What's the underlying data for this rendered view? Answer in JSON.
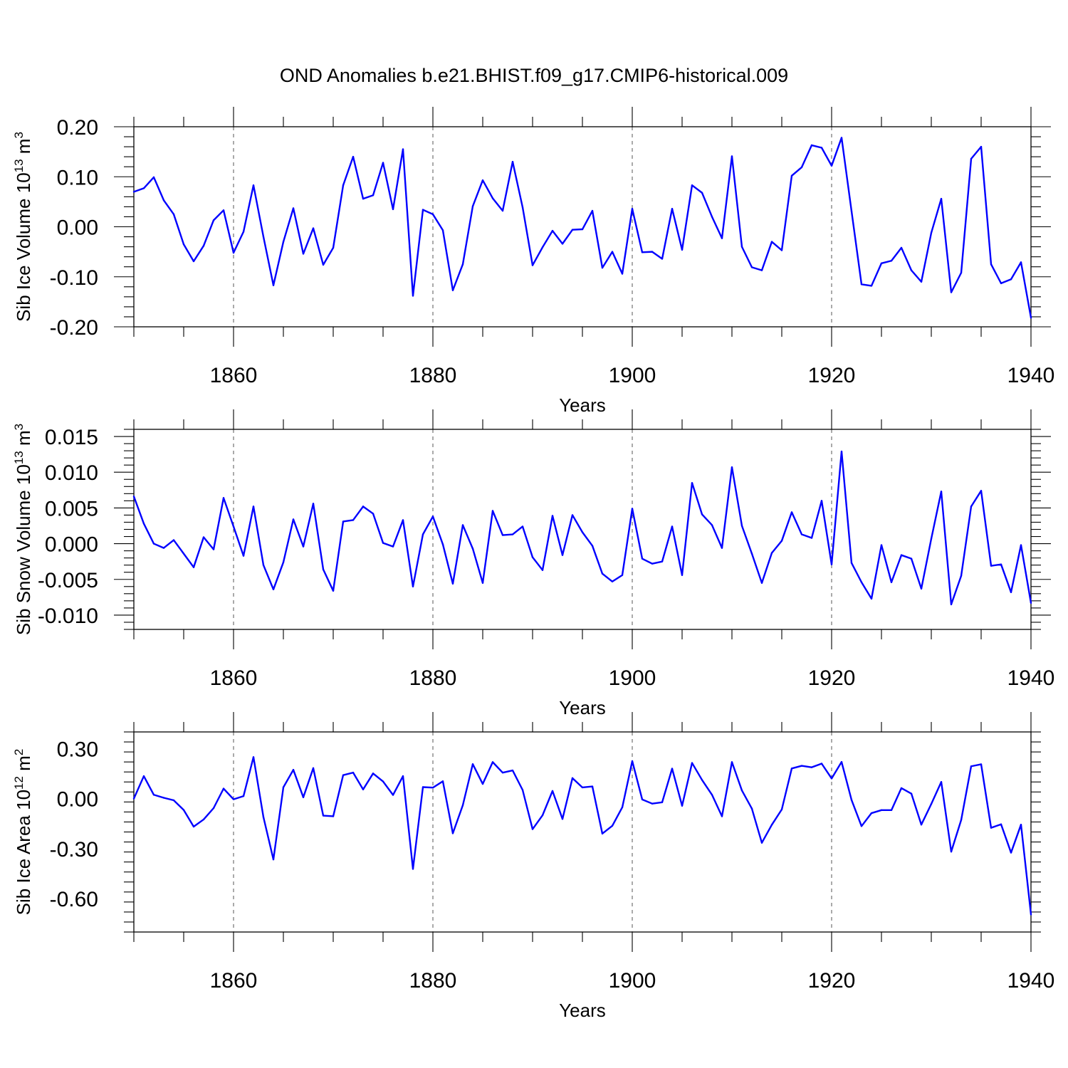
{
  "title": "OND Anomalies b.e21.BHIST.f09_g17.CMIP6-historical.009",
  "line_color": "#0000ff",
  "chart_data": [
    {
      "type": "line",
      "name": "sib-ice-volume",
      "ylabel": "Sib Ice Volume 10",
      "ylabel_exp": "13",
      "ylabel_unit": " m",
      "ylabel_unit_exp": "3",
      "xlabel": "Years",
      "xlim": [
        1850,
        1940
      ],
      "ylim": [
        -0.2,
        0.2
      ],
      "yticks": [
        -0.2,
        -0.1,
        0.0,
        0.1,
        0.2
      ],
      "ytick_labels": [
        "-0.20",
        "-0.10",
        "0.00",
        "0.10",
        "0.20"
      ],
      "xticks": [
        1860,
        1880,
        1900,
        1920,
        1940
      ],
      "xtick_labels": [
        "1860",
        "1880",
        "1900",
        "1920",
        "1940"
      ],
      "x_start": 1850,
      "values": [
        0.07,
        0.077,
        0.099,
        0.053,
        0.025,
        -0.035,
        -0.069,
        -0.038,
        0.013,
        0.033,
        -0.052,
        -0.01,
        0.083,
        -0.02,
        -0.117,
        -0.03,
        0.037,
        -0.054,
        -0.003,
        -0.076,
        -0.042,
        0.083,
        0.14,
        0.056,
        0.063,
        0.128,
        0.035,
        0.155,
        -0.138,
        0.034,
        0.025,
        -0.007,
        -0.127,
        -0.075,
        0.041,
        0.093,
        0.057,
        0.032,
        0.13,
        0.039,
        -0.077,
        -0.041,
        -0.008,
        -0.034,
        -0.006,
        -0.005,
        0.032,
        -0.082,
        -0.05,
        -0.094,
        0.036,
        -0.051,
        -0.05,
        -0.064,
        0.036,
        -0.046,
        0.083,
        0.068,
        0.02,
        -0.023,
        0.141,
        -0.04,
        -0.081,
        -0.087,
        -0.03,
        -0.047,
        0.102,
        0.119,
        0.163,
        0.158,
        0.122,
        0.178,
        0.031,
        -0.115,
        -0.118,
        -0.073,
        -0.068,
        -0.042,
        -0.087,
        -0.11,
        -0.012,
        0.056,
        -0.131,
        -0.092,
        0.136,
        0.16,
        -0.075,
        -0.113,
        -0.105,
        -0.071,
        -0.182
      ]
    },
    {
      "type": "line",
      "name": "sib-snow-volume",
      "ylabel": "Sib Snow Volume 10",
      "ylabel_exp": "13",
      "ylabel_unit": " m",
      "ylabel_unit_exp": "3",
      "xlabel": "Years",
      "xlim": [
        1850,
        1940
      ],
      "ylim": [
        -0.012,
        0.016
      ],
      "yticks": [
        -0.01,
        -0.005,
        0.0,
        0.005,
        0.01,
        0.015
      ],
      "ytick_labels": [
        "-0.010",
        "-0.005",
        "0.000",
        "0.005",
        "0.010",
        "0.015"
      ],
      "xticks": [
        1860,
        1880,
        1900,
        1920,
        1940
      ],
      "xtick_labels": [
        "1860",
        "1880",
        "1900",
        "1920",
        "1940"
      ],
      "x_start": 1850,
      "values": [
        0.0066,
        0.0028,
        0.0,
        -0.0006,
        0.0005,
        -0.0014,
        -0.0033,
        0.0009,
        -0.0008,
        0.0064,
        0.0024,
        -0.0017,
        0.0052,
        -0.003,
        -0.0064,
        -0.0026,
        0.0034,
        -0.0004,
        0.0056,
        -0.0036,
        -0.0066,
        0.0031,
        0.0033,
        0.0052,
        0.0042,
        0.0001,
        -0.0004,
        0.0033,
        -0.006,
        0.0013,
        0.0038,
        -0.0001,
        -0.0056,
        0.0026,
        -0.0007,
        -0.0055,
        0.0046,
        0.0012,
        0.0013,
        0.0024,
        -0.0019,
        -0.0037,
        0.0039,
        -0.0016,
        0.004,
        0.0016,
        -0.0003,
        -0.0042,
        -0.0053,
        -0.0044,
        0.0049,
        -0.0021,
        -0.0028,
        -0.0025,
        0.0024,
        -0.0044,
        0.0085,
        0.0041,
        0.0026,
        -0.0006,
        0.0107,
        0.0025,
        -0.0014,
        -0.0055,
        -0.0013,
        0.0004,
        0.0044,
        0.0013,
        0.0008,
        0.006,
        -0.0029,
        0.0129,
        -0.0027,
        -0.0054,
        -0.0077,
        -0.0002,
        -0.0054,
        -0.0016,
        -0.0021,
        -0.0063,
        0.0007,
        0.0073,
        -0.0085,
        -0.0045,
        0.0052,
        0.0074,
        -0.0031,
        -0.0029,
        -0.0068,
        -0.0002,
        -0.0083
      ]
    },
    {
      "type": "line",
      "name": "sib-ice-area",
      "ylabel": "Sib Ice Area 10",
      "ylabel_exp": "12",
      "ylabel_unit": " m",
      "ylabel_unit_exp": "2",
      "xlabel": "Years",
      "xlim": [
        1850,
        1940
      ],
      "ylim": [
        -0.8,
        0.4
      ],
      "yticks": [
        -0.6,
        -0.3,
        0.0,
        0.3
      ],
      "ytick_labels": [
        "-0.60",
        "-0.30",
        "0.00",
        "0.30"
      ],
      "xticks": [
        1860,
        1880,
        1900,
        1920,
        1940
      ],
      "xtick_labels": [
        "1860",
        "1880",
        "1900",
        "1920",
        "1940"
      ],
      "x_start": 1850,
      "values": [
        0.0,
        0.135,
        0.023,
        0.005,
        -0.01,
        -0.068,
        -0.168,
        -0.125,
        -0.057,
        0.06,
        -0.004,
        0.015,
        0.249,
        -0.111,
        -0.365,
        0.068,
        0.173,
        0.008,
        0.183,
        -0.102,
        -0.106,
        0.141,
        0.156,
        0.055,
        0.151,
        0.103,
        0.022,
        0.135,
        -0.422,
        0.069,
        0.066,
        0.104,
        -0.208,
        -0.04,
        0.207,
        0.088,
        0.219,
        0.156,
        0.169,
        0.052,
        -0.183,
        -0.1,
        0.046,
        -0.122,
        0.123,
        0.067,
        0.073,
        -0.21,
        -0.163,
        -0.052,
        0.225,
        -0.005,
        -0.03,
        -0.022,
        0.18,
        -0.043,
        0.214,
        0.112,
        0.023,
        -0.106,
        0.219,
        0.049,
        -0.06,
        -0.265,
        -0.157,
        -0.065,
        0.181,
        0.197,
        0.188,
        0.21,
        0.121,
        0.22,
        -0.008,
        -0.165,
        -0.087,
        -0.069,
        -0.069,
        0.063,
        0.03,
        -0.156,
        -0.032,
        0.1,
        -0.318,
        -0.128,
        0.194,
        0.206,
        -0.175,
        -0.154,
        -0.324,
        -0.156,
        -0.695
      ]
    }
  ]
}
